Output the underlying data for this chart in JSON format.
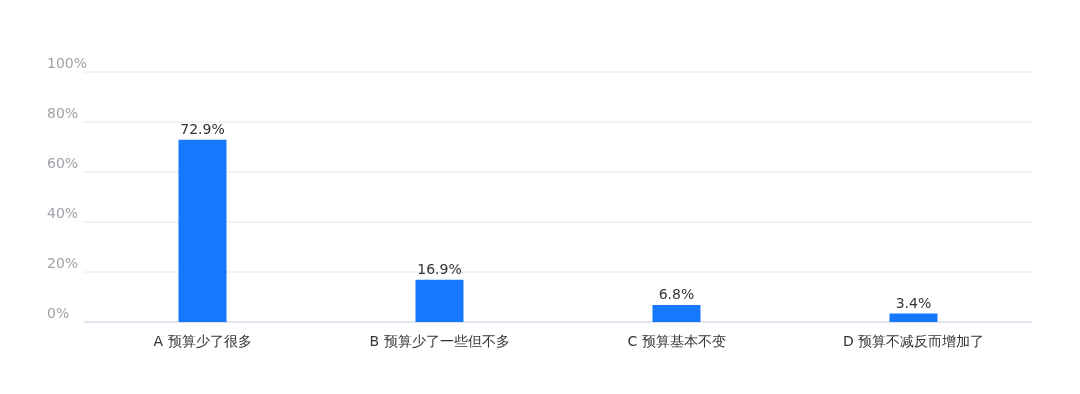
{
  "chart_data": {
    "type": "bar",
    "categories": [
      "A 预算少了很多",
      "B 预算少了一些但不多",
      "C 预算基本不变",
      "D 预算不减反而增加了"
    ],
    "values": [
      72.9,
      16.9,
      6.8,
      3.4
    ],
    "value_labels": [
      "72.9%",
      "16.9%",
      "6.8%",
      "3.4%"
    ],
    "color": "#1677ff",
    "ylim": [
      0,
      100
    ],
    "yticks": [
      {
        "value": 0,
        "label": "0%"
      },
      {
        "value": 20,
        "label": "20%"
      },
      {
        "value": 40,
        "label": "40%"
      },
      {
        "value": 60,
        "label": "60%"
      },
      {
        "value": 80,
        "label": "80%"
      },
      {
        "value": 100,
        "label": "100%"
      }
    ],
    "grid": "y"
  }
}
